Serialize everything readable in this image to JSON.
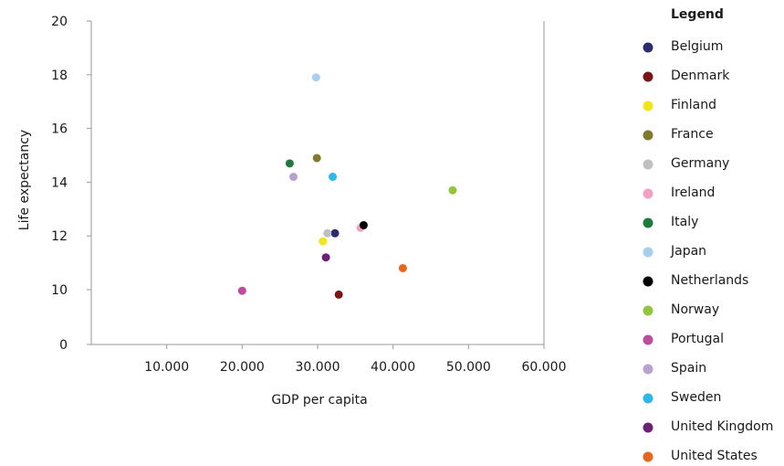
{
  "chart_data": {
    "type": "scatter",
    "xlabel": "GDP per capita",
    "ylabel": "Life expectancy",
    "xlim": [
      0,
      60000
    ],
    "ylim": [
      0,
      20
    ],
    "x_ticks": [
      {
        "value": 10000,
        "label": "10.000"
      },
      {
        "value": 20000,
        "label": "20.000"
      },
      {
        "value": 30000,
        "label": "30.000"
      },
      {
        "value": 40000,
        "label": "40.000"
      },
      {
        "value": 50000,
        "label": "50.000"
      },
      {
        "value": 60000,
        "label": "60.000"
      }
    ],
    "y_ticks": [
      {
        "value": 0,
        "label": "0"
      },
      {
        "value": 10,
        "label": "10"
      },
      {
        "value": 12,
        "label": "12"
      },
      {
        "value": 14,
        "label": "14"
      },
      {
        "value": 16,
        "label": "16"
      },
      {
        "value": 18,
        "label": "18"
      },
      {
        "value": 20,
        "label": "20"
      }
    ],
    "grid": false,
    "legend_position": "right",
    "legend_title": "Legend",
    "series": [
      {
        "name": "Belgium",
        "color": "#2b2c6e",
        "x": 32300,
        "y": 12.1
      },
      {
        "name": "Denmark",
        "color": "#7a1518",
        "x": 32800,
        "y": 9.1
      },
      {
        "name": "Finland",
        "color": "#f2e51a",
        "x": 30700,
        "y": 11.8
      },
      {
        "name": "France",
        "color": "#7f7a2e",
        "x": 29900,
        "y": 14.9
      },
      {
        "name": "Germany",
        "color": "#c0c0c0",
        "x": 31300,
        "y": 12.1
      },
      {
        "name": "Ireland",
        "color": "#f1a0c4",
        "x": 35700,
        "y": 12.3
      },
      {
        "name": "Italy",
        "color": "#1f7a3c",
        "x": 26300,
        "y": 14.7
      },
      {
        "name": "Japan",
        "color": "#a8cff0",
        "x": 29800,
        "y": 17.9
      },
      {
        "name": "Netherlands",
        "color": "#000000",
        "x": 36100,
        "y": 12.4
      },
      {
        "name": "Norway",
        "color": "#92c43d",
        "x": 47900,
        "y": 13.7
      },
      {
        "name": "Portugal",
        "color": "#bb4c9e",
        "x": 20000,
        "y": 9.8
      },
      {
        "name": "Spain",
        "color": "#b8a0d0",
        "x": 26800,
        "y": 14.2
      },
      {
        "name": "Sweden",
        "color": "#2cb8ea",
        "x": 32000,
        "y": 14.2
      },
      {
        "name": "United Kingdom",
        "color": "#6b2275",
        "x": 31100,
        "y": 11.2
      },
      {
        "name": "United States",
        "color": "#e8661c",
        "x": 41300,
        "y": 10.8
      }
    ]
  }
}
